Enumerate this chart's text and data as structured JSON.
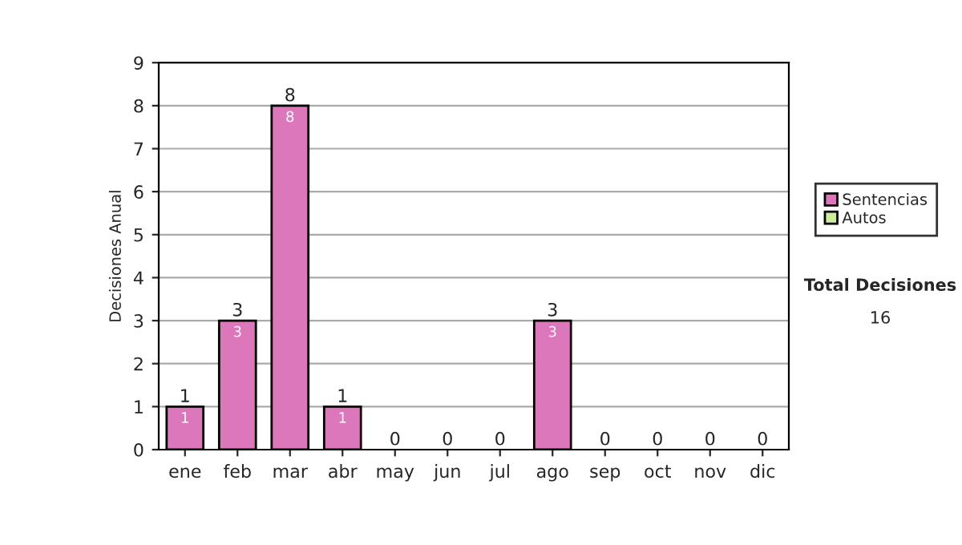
{
  "chart_data": {
    "type": "bar",
    "stacked": true,
    "ylabel": "Decisiones Anual",
    "categories": [
      "ene",
      "feb",
      "mar",
      "abr",
      "may",
      "jun",
      "jul",
      "ago",
      "sep",
      "oct",
      "nov",
      "dic"
    ],
    "series": [
      {
        "name": "Sentencias",
        "color": "#dd77bb",
        "values": [
          1,
          3,
          8,
          1,
          0,
          0,
          0,
          3,
          0,
          0,
          0,
          0
        ],
        "value_labels": [
          "1",
          "3",
          "8",
          "1",
          null,
          null,
          null,
          "3",
          null,
          null,
          null,
          null
        ]
      },
      {
        "name": "Autos",
        "color": "#ccee99",
        "values": [
          0,
          0,
          0,
          0,
          0,
          0,
          0,
          0,
          0,
          0,
          0,
          0
        ]
      }
    ],
    "totals": [
      "1",
      "3",
      "8",
      "1",
      "0",
      "0",
      "0",
      "3",
      "0",
      "0",
      "0",
      "0"
    ],
    "ylim": [
      0,
      9
    ],
    "yticks": [
      0,
      1,
      2,
      3,
      4,
      5,
      6,
      7,
      8,
      9
    ],
    "grid": "y",
    "legend": "right",
    "annotations": [
      "Total Decisiones",
      "16"
    ]
  }
}
